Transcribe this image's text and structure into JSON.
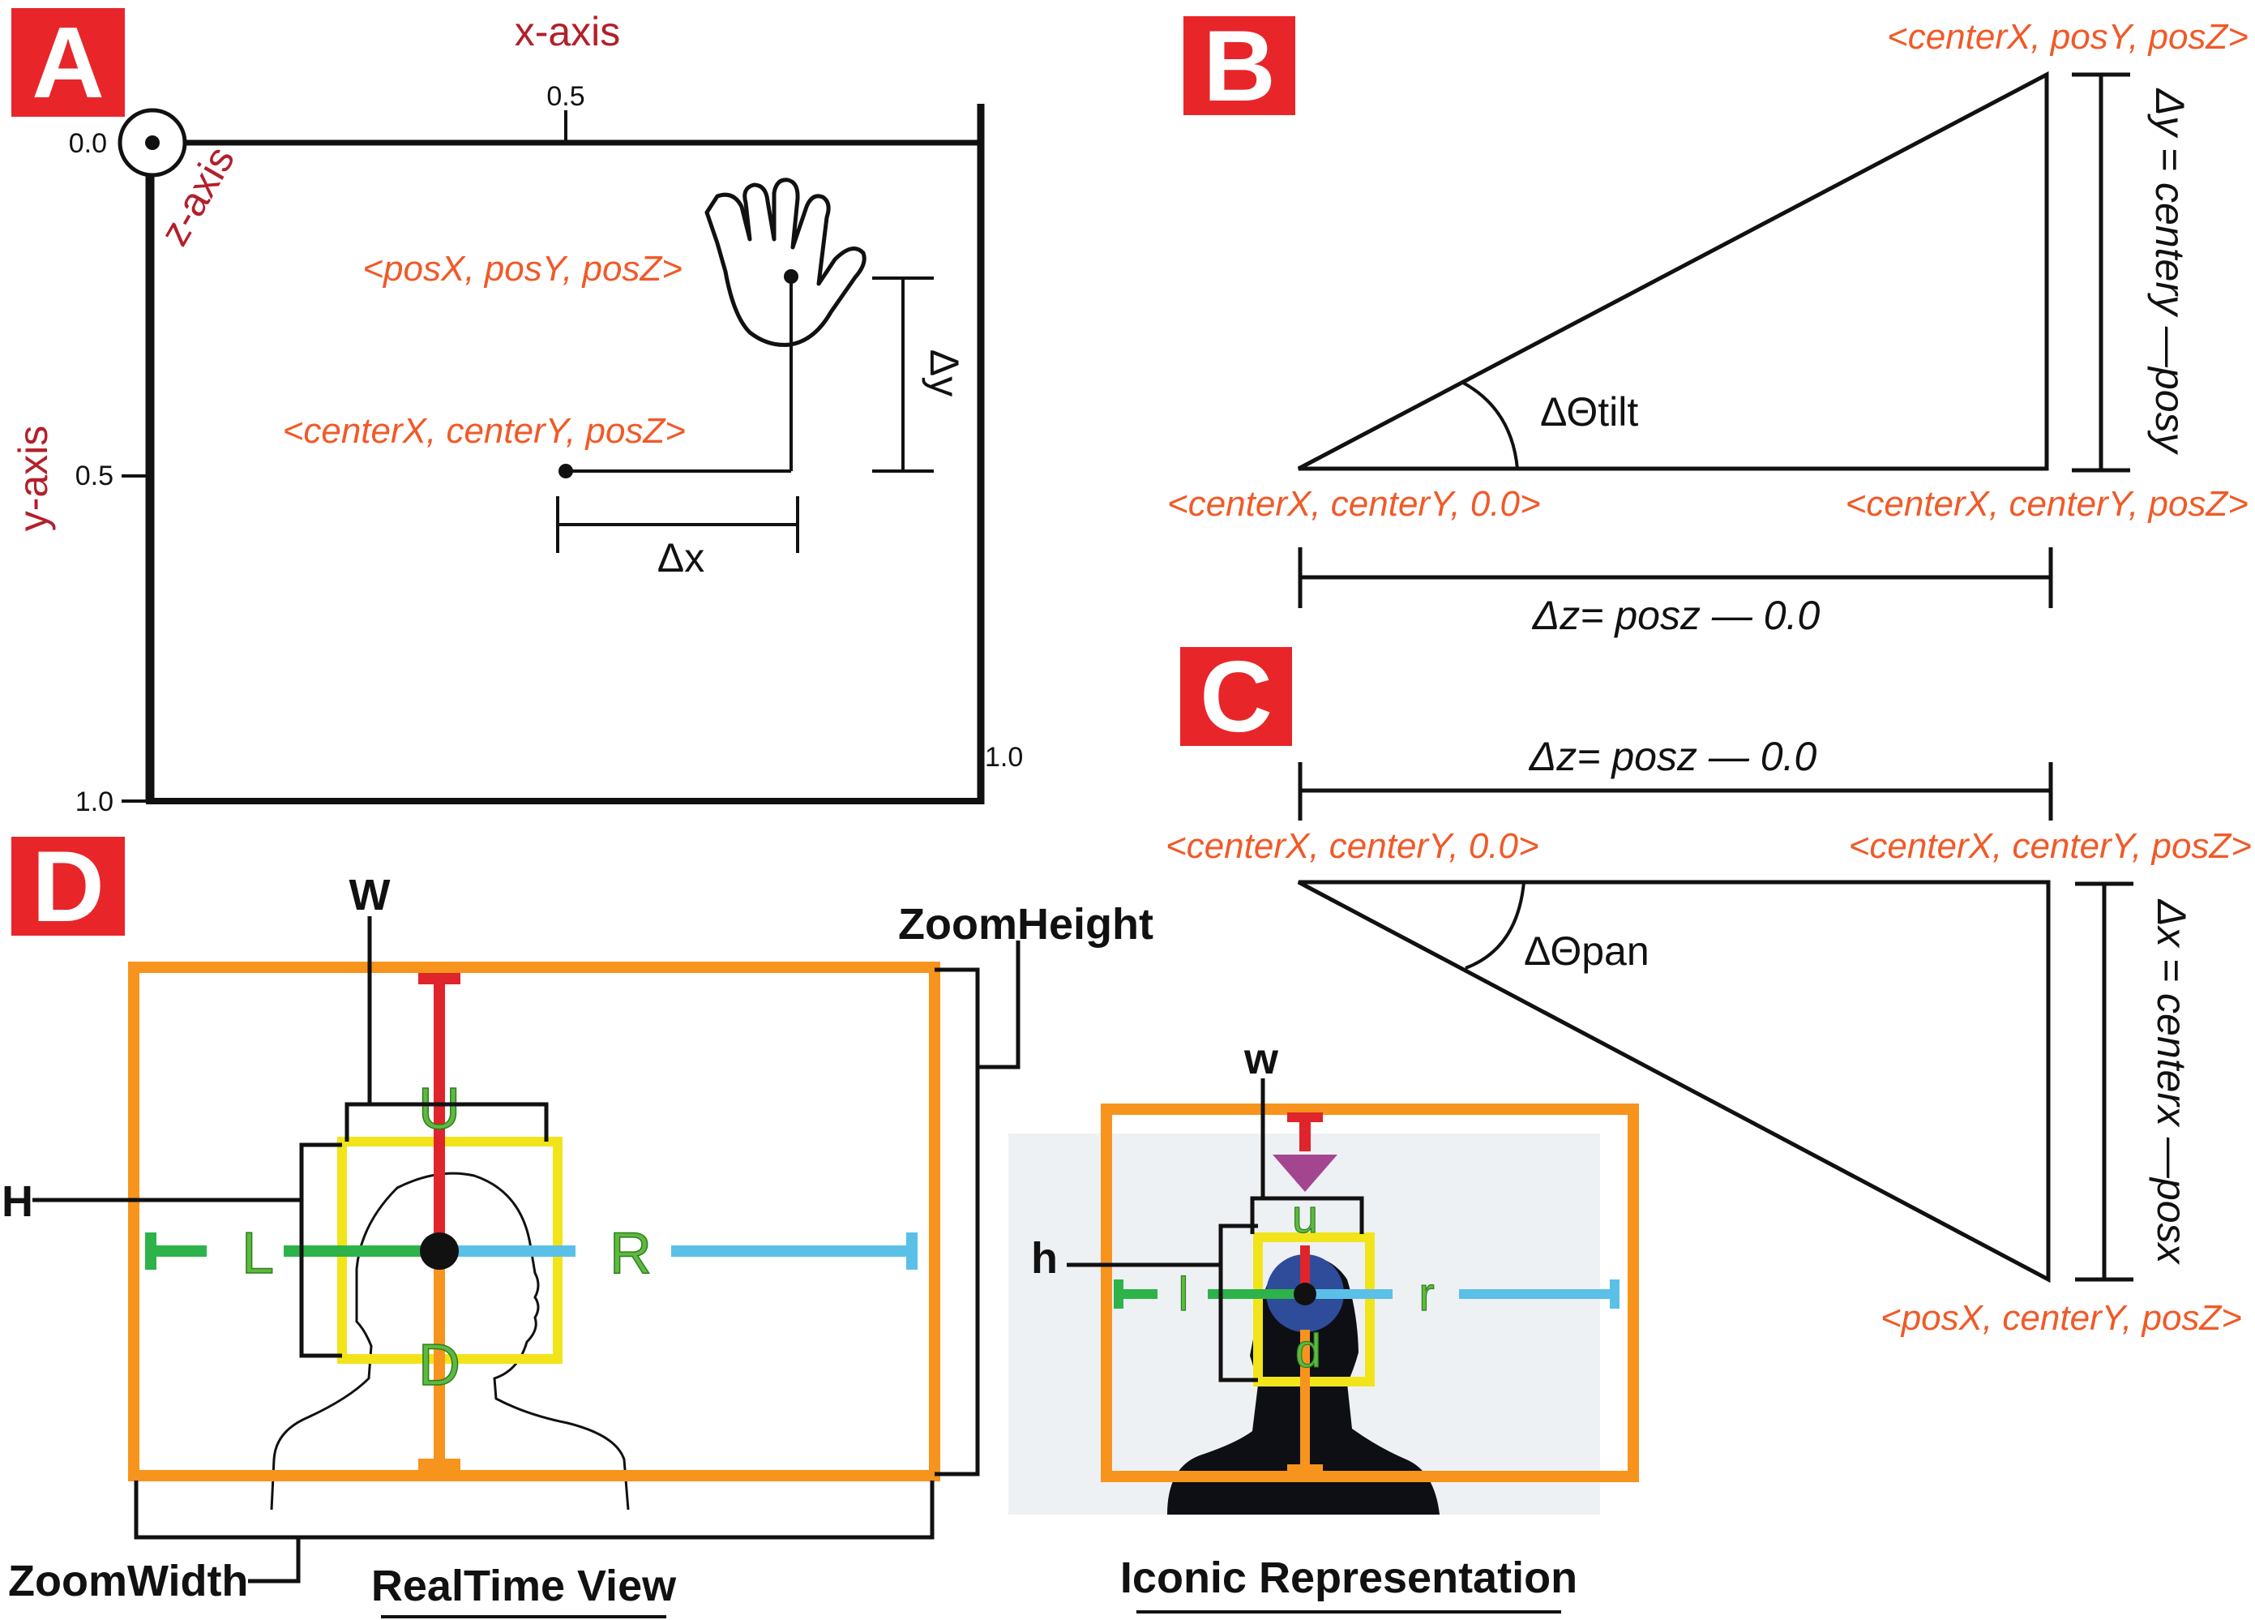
{
  "panels": {
    "a": "A",
    "b": "B",
    "c": "C",
    "d": "D"
  },
  "panel_a": {
    "x_axis_label": "x-axis",
    "y_axis_label": "y-axis",
    "z_axis_label": "z-axis",
    "origin_label": "0.0",
    "x_mid_label": "0.5",
    "y_mid_label": "0.5",
    "y_end_label": "1.0",
    "x_end_label": "1.0",
    "hand_point_label": "<posX, posY, posZ>",
    "center_point_label": "<centerX, centerY, posZ>",
    "delta_x": "Δx",
    "delta_y": "Δy"
  },
  "panel_b": {
    "top_right_label": "<centerX, posY, posZ>",
    "left_label": "<centerX, centerY, 0.0>",
    "right_label": "<centerX, centerY, posZ>",
    "angle_label": "ΔΘtilt",
    "vertical_eq": "Δy = centery —posy",
    "bottom_eq": "Δz= posz — 0.0"
  },
  "panel_c": {
    "top_eq": "Δz= posz — 0.0",
    "left_label": "<centerX, centerY, 0.0>",
    "right_label": "<centerX, centerY, posZ>",
    "bottom_right_label": "<posX, centerY, posZ>",
    "angle_label": "ΔΘpan",
    "vertical_eq": "Δx = centerx —posx"
  },
  "panel_d": {
    "zoom_height": "ZoomHeight",
    "zoom_width": "ZoomWidth",
    "realtime_caption": "RealTime View",
    "iconic_caption": "Iconic Representation",
    "big": {
      "W": "W",
      "H": "H",
      "U": "U",
      "D": "D",
      "L": "L",
      "R": "R"
    },
    "small": {
      "w": "w",
      "h": "h",
      "u": "u",
      "d": "d",
      "l": "l",
      "r": "r"
    }
  },
  "colors": {
    "panel_tag": "#e8262a",
    "orange_label": "#f05a28",
    "axis_title": "#b2202b",
    "zoom_box": "#f7941d",
    "face_box": "#f2e41b",
    "up": "#e0242b",
    "left": "#2db34a",
    "right": "#5bc0e8",
    "down": "#f7941d"
  }
}
